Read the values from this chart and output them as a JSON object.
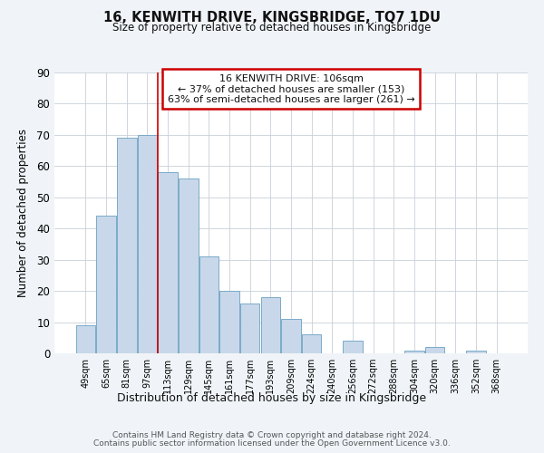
{
  "title": "16, KENWITH DRIVE, KINGSBRIDGE, TQ7 1DU",
  "subtitle": "Size of property relative to detached houses in Kingsbridge",
  "xlabel": "Distribution of detached houses by size in Kingsbridge",
  "ylabel": "Number of detached properties",
  "bar_color": "#c8d8ea",
  "bar_edge_color": "#7aaac8",
  "categories": [
    "49sqm",
    "65sqm",
    "81sqm",
    "97sqm",
    "113sqm",
    "129sqm",
    "145sqm",
    "161sqm",
    "177sqm",
    "193sqm",
    "209sqm",
    "224sqm",
    "240sqm",
    "256sqm",
    "272sqm",
    "288sqm",
    "304sqm",
    "320sqm",
    "336sqm",
    "352sqm",
    "368sqm"
  ],
  "values": [
    9,
    44,
    69,
    70,
    58,
    56,
    31,
    20,
    16,
    18,
    11,
    6,
    0,
    4,
    0,
    0,
    1,
    2,
    0,
    1,
    0
  ],
  "ylim": [
    0,
    90
  ],
  "yticks": [
    0,
    10,
    20,
    30,
    40,
    50,
    60,
    70,
    80,
    90
  ],
  "annotation_title": "16 KENWITH DRIVE: 106sqm",
  "annotation_line1": "← 37% of detached houses are smaller (153)",
  "annotation_line2": "63% of semi-detached houses are larger (261) →",
  "annotation_box_color": "#ffffff",
  "annotation_box_edge": "#cc0000",
  "red_line_x": 4,
  "footer_line1": "Contains HM Land Registry data © Crown copyright and database right 2024.",
  "footer_line2": "Contains public sector information licensed under the Open Government Licence v3.0.",
  "background_color": "#f0f4f8",
  "plot_background": "#ffffff",
  "grid_color": "#c8d0d8"
}
